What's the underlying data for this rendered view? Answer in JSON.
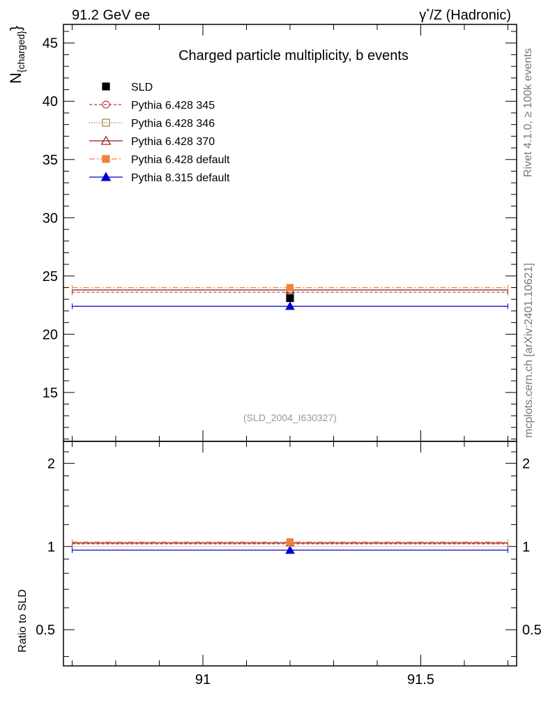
{
  "header": {
    "left": "91.2 GeV ee",
    "right_gamma": "γ",
    "right_star": "*",
    "right_rest": "/Z (Hadronic)"
  },
  "side_labels": {
    "rivet": "Rivet 4.1.0, ≥ 100k events",
    "mcplots": "mcplots.cern.ch [arXiv:2401.10621]"
  },
  "chart_data": [
    {
      "type": "scatter",
      "title": "Charged particle multiplicity, b events",
      "ylabel_main": "N",
      "ylabel_sub": "{charged}",
      "ylabel_brace": "}",
      "analysis_tag": "(SLD_2004_I630327)",
      "xlim": [
        90.68,
        91.72
      ],
      "ylim": [
        10.8,
        46.6
      ],
      "yticks": [
        15,
        20,
        25,
        30,
        35,
        40,
        45
      ],
      "ytick_labels": [
        "15",
        "20",
        "25",
        "30",
        "35",
        "40",
        "45"
      ],
      "bin": [
        90.7,
        91.7
      ],
      "x_center": 91.2,
      "series": [
        {
          "name": "SLD",
          "value": 23.1,
          "color": "#000000",
          "marker": "square-filled",
          "dash": "",
          "is_data": true
        },
        {
          "name": "Pythia 6.428 345",
          "value": 23.6,
          "color": "#c0344d",
          "marker": "circle-open",
          "dash": "4,3"
        },
        {
          "name": "Pythia 6.428 346",
          "value": 23.8,
          "color": "#a08040",
          "marker": "square-open",
          "dash": "1.5,2"
        },
        {
          "name": "Pythia 6.428 370",
          "value": 23.8,
          "color": "#8b1a1a",
          "marker": "triangle-open",
          "dash": ""
        },
        {
          "name": "Pythia 6.428 default",
          "value": 24.0,
          "color": "#f2803a",
          "marker": "square-filled",
          "dash": "8,3,2,3"
        },
        {
          "name": "Pythia 8.315 default",
          "value": 22.4,
          "color": "#0000cc",
          "marker": "triangle-filled",
          "dash": ""
        }
      ]
    },
    {
      "type": "scatter",
      "ylabel": "Ratio to SLD",
      "scale": "log",
      "ylim": [
        0.37,
        2.4
      ],
      "yticks": [
        0.5,
        1,
        2
      ],
      "ytick_labels": [
        "0.5",
        "1",
        "2"
      ],
      "xticks": [
        91,
        91.5
      ],
      "xtick_labels": [
        "91",
        "91.5"
      ],
      "series": [
        {
          "name": "SLD",
          "value": 1.0
        },
        {
          "name": "Pythia 6.428 345",
          "value": 1.022
        },
        {
          "name": "Pythia 6.428 346",
          "value": 1.03
        },
        {
          "name": "Pythia 6.428 370",
          "value": 1.03
        },
        {
          "name": "Pythia 6.428 default",
          "value": 1.039
        },
        {
          "name": "Pythia 8.315 default",
          "value": 0.97
        }
      ]
    }
  ]
}
